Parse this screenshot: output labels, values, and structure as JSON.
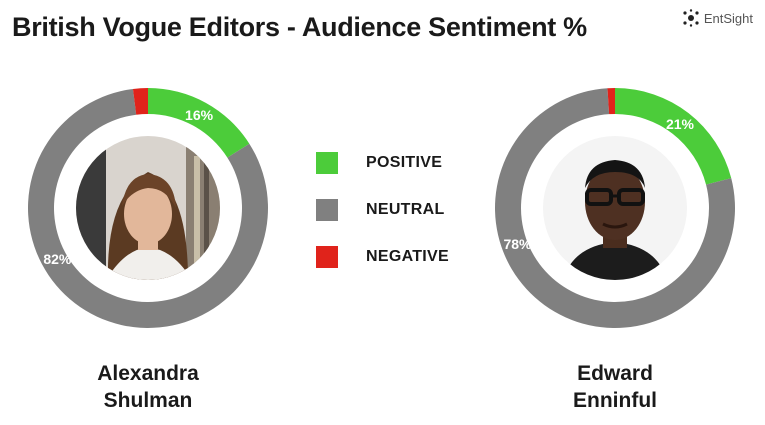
{
  "title": "British Vogue Editors - Audience Sentiment %",
  "logo": {
    "text": "EntSight",
    "icon": "dots-logo-icon"
  },
  "legend": [
    {
      "label": "POSITIVE",
      "color": "#4ccc3a"
    },
    {
      "label": "NEUTRAL",
      "color": "#808080"
    },
    {
      "label": "NEGATIVE",
      "color": "#e0231b"
    }
  ],
  "chart_data": [
    {
      "type": "pie",
      "variant": "donut",
      "name_line1": "Alexandra",
      "name_line2": "Shulman",
      "photo": "portrait-photo",
      "slices": [
        {
          "label": "POSITIVE",
          "value": 16,
          "data_label": "16%"
        },
        {
          "label": "NEUTRAL",
          "value": 82,
          "data_label": "82%"
        },
        {
          "label": "NEGATIVE",
          "value": 2,
          "data_label": ""
        }
      ]
    },
    {
      "type": "pie",
      "variant": "donut",
      "name_line1": "Edward",
      "name_line2": "Enninful",
      "photo": "portrait-photo",
      "slices": [
        {
          "label": "POSITIVE",
          "value": 21,
          "data_label": "21%"
        },
        {
          "label": "NEUTRAL",
          "value": 78,
          "data_label": "78%"
        },
        {
          "label": "NEGATIVE",
          "value": 1,
          "data_label": ""
        }
      ]
    }
  ]
}
